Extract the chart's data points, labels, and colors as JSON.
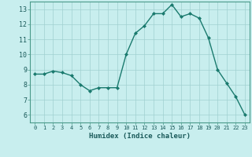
{
  "x": [
    0,
    1,
    2,
    3,
    4,
    5,
    6,
    7,
    8,
    9,
    10,
    11,
    12,
    13,
    14,
    15,
    16,
    17,
    18,
    19,
    20,
    21,
    22,
    23
  ],
  "y": [
    8.7,
    8.7,
    8.9,
    8.8,
    8.6,
    8.0,
    7.6,
    7.8,
    7.8,
    7.8,
    10.0,
    11.4,
    11.9,
    12.7,
    12.7,
    13.3,
    12.5,
    12.7,
    12.4,
    11.1,
    9.0,
    8.1,
    7.2,
    6.0
  ],
  "xlabel": "Humidex (Indice chaleur)",
  "xlim": [
    -0.5,
    23.5
  ],
  "ylim": [
    5.5,
    13.5
  ],
  "yticks": [
    6,
    7,
    8,
    9,
    10,
    11,
    12,
    13
  ],
  "xticks": [
    0,
    1,
    2,
    3,
    4,
    5,
    6,
    7,
    8,
    9,
    10,
    11,
    12,
    13,
    14,
    15,
    16,
    17,
    18,
    19,
    20,
    21,
    22,
    23
  ],
  "line_color": "#1a7a6e",
  "marker_color": "#1a7a6e",
  "bg_color": "#c8eeee",
  "grid_color": "#a0d0d0",
  "tick_label_color": "#1a5a5a",
  "xlabel_color": "#1a5a5a",
  "figure_bg": "#c8eeee"
}
